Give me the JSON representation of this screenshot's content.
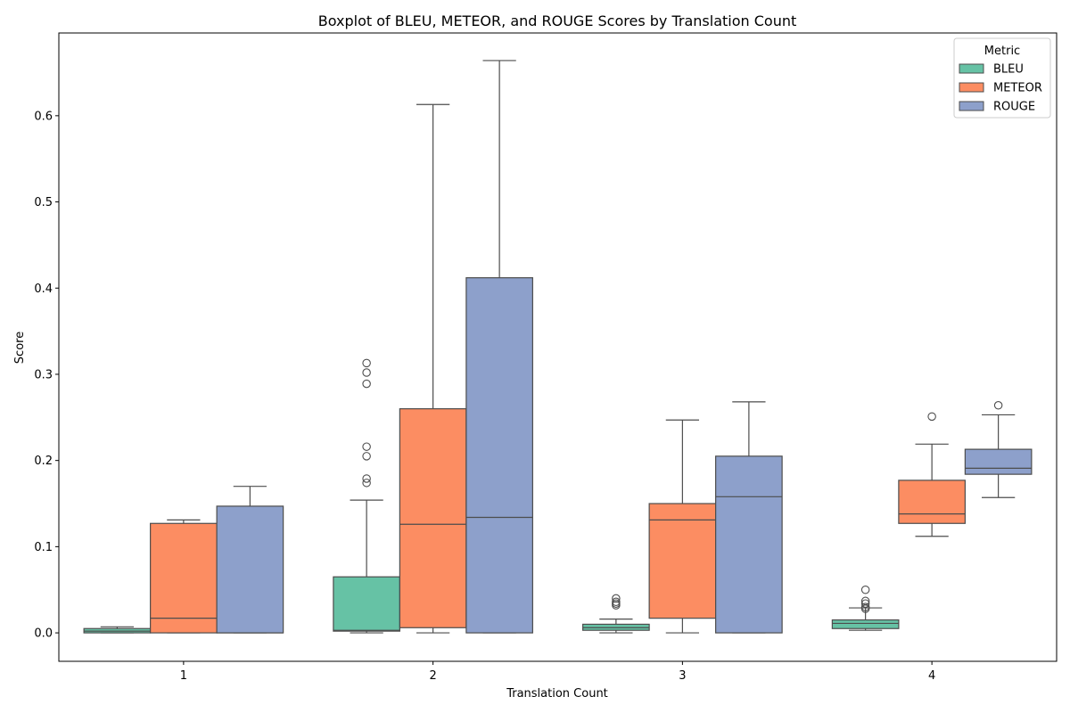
{
  "chart_data": {
    "type": "boxplot",
    "title": "Boxplot of BLEU, METEOR, and ROUGE Scores by Translation Count",
    "xlabel": "Translation Count",
    "ylabel": "Score",
    "categories": [
      "1",
      "2",
      "3",
      "4"
    ],
    "ylim": [
      -0.033,
      0.696
    ],
    "yticks": [
      "0.0",
      "0.1",
      "0.2",
      "0.3",
      "0.4",
      "0.5",
      "0.6"
    ],
    "grid": false,
    "legend": {
      "title": "Metric",
      "placement": "top-right"
    },
    "series": [
      {
        "name": "BLEU",
        "color": "#66c2a5",
        "boxes": [
          {
            "whisker_low": 0.0,
            "q1": 0.0,
            "median": 0.002,
            "q3": 0.005,
            "whisker_high": 0.007,
            "outliers": []
          },
          {
            "whisker_low": 0.0,
            "q1": 0.002,
            "median": 0.003,
            "q3": 0.065,
            "whisker_high": 0.154,
            "outliers": [
              0.174,
              0.179,
              0.205,
              0.216,
              0.289,
              0.302,
              0.313
            ]
          },
          {
            "whisker_low": 0.0,
            "q1": 0.003,
            "median": 0.006,
            "q3": 0.01,
            "whisker_high": 0.016,
            "outliers": [
              0.032,
              0.034,
              0.036,
              0.04
            ]
          },
          {
            "whisker_low": 0.003,
            "q1": 0.005,
            "median": 0.011,
            "q3": 0.015,
            "whisker_high": 0.029,
            "outliers": [
              0.028,
              0.03,
              0.034,
              0.037,
              0.05
            ]
          }
        ]
      },
      {
        "name": "METEOR",
        "color": "#fc8d62",
        "boxes": [
          {
            "whisker_low": 0.0,
            "q1": 0.0,
            "median": 0.017,
            "q3": 0.127,
            "whisker_high": 0.131,
            "outliers": []
          },
          {
            "whisker_low": 0.0,
            "q1": 0.006,
            "median": 0.126,
            "q3": 0.26,
            "whisker_high": 0.613,
            "outliers": []
          },
          {
            "whisker_low": 0.0,
            "q1": 0.017,
            "median": 0.131,
            "q3": 0.15,
            "whisker_high": 0.247,
            "outliers": []
          },
          {
            "whisker_low": 0.112,
            "q1": 0.127,
            "median": 0.138,
            "q3": 0.177,
            "whisker_high": 0.219,
            "outliers": [
              0.251
            ]
          }
        ]
      },
      {
        "name": "ROUGE",
        "color": "#8da0cb",
        "boxes": [
          {
            "whisker_low": 0.0,
            "q1": 0.0,
            "median": 0.0,
            "q3": 0.147,
            "whisker_high": 0.17,
            "outliers": []
          },
          {
            "whisker_low": 0.0,
            "q1": 0.0,
            "median": 0.134,
            "q3": 0.412,
            "whisker_high": 0.664,
            "outliers": []
          },
          {
            "whisker_low": 0.0,
            "q1": 0.0,
            "median": 0.158,
            "q3": 0.205,
            "whisker_high": 0.268,
            "outliers": []
          },
          {
            "whisker_low": 0.157,
            "q1": 0.184,
            "median": 0.191,
            "q3": 0.213,
            "whisker_high": 0.253,
            "outliers": [
              0.264
            ]
          }
        ]
      }
    ]
  }
}
